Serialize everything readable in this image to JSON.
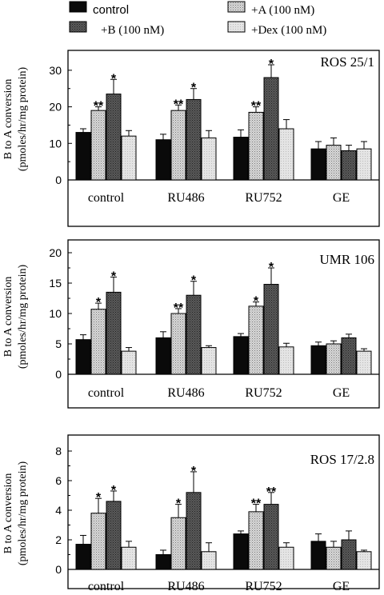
{
  "legend": {
    "items": [
      {
        "label": "control",
        "pattern": "black",
        "font": "sans"
      },
      {
        "label": "+A (100 nM)",
        "pattern": "lightHatch",
        "font": "serif"
      },
      {
        "label": "+B (100 nM)",
        "pattern": "darkHatch",
        "font": "serif"
      },
      {
        "label": "+Dex (100 nM)",
        "pattern": "lightGray",
        "font": "serif"
      }
    ]
  },
  "chart_data": [
    {
      "type": "bar",
      "title": "ROS 25/1",
      "ylabel_line1": "B to A conversion",
      "ylabel_line2": "(pmoles/hr/mg protein)",
      "categories": [
        "control",
        "RU486",
        "RU752",
        "GE"
      ],
      "ylim": [
        0,
        35
      ],
      "yticks": [
        "0",
        "10",
        "20",
        "30"
      ],
      "ytick_values": [
        0,
        10,
        20,
        30
      ],
      "series": [
        {
          "name": "control",
          "values": [
            13,
            11,
            11.7,
            8.5
          ],
          "errors": [
            1,
            1.5,
            2,
            2
          ]
        },
        {
          "name": "+A (100 nM)",
          "values": [
            19,
            19,
            18.5,
            9.5
          ],
          "errors": [
            1,
            1.5,
            1.5,
            2
          ]
        },
        {
          "name": "+B (100 nM)",
          "values": [
            23.5,
            22,
            28,
            8
          ],
          "errors": [
            4,
            3,
            3.5,
            1.5
          ]
        },
        {
          "name": "+Dex (100 nM)",
          "values": [
            12,
            11.5,
            14,
            8.5
          ],
          "errors": [
            1.5,
            2,
            2.5,
            2
          ]
        }
      ],
      "significance": [
        {
          "series": 1,
          "category": 0,
          "label": "**"
        },
        {
          "series": 2,
          "category": 0,
          "label": "*"
        },
        {
          "series": 1,
          "category": 1,
          "label": "**"
        },
        {
          "series": 2,
          "category": 1,
          "label": "*"
        },
        {
          "series": 1,
          "category": 2,
          "label": "**"
        },
        {
          "series": 2,
          "category": 2,
          "label": "*"
        }
      ]
    },
    {
      "type": "bar",
      "title": "UMR 106",
      "ylabel_line1": "B to A conversion",
      "ylabel_line2": "(pmoles/hr/mg protein)",
      "categories": [
        "control",
        "RU486",
        "RU752",
        "GE"
      ],
      "ylim": [
        0,
        20
      ],
      "yticks": [
        "0",
        "5",
        "10",
        "15",
        "20"
      ],
      "ytick_values": [
        0,
        5,
        10,
        15,
        20
      ],
      "series": [
        {
          "name": "control",
          "values": [
            5.7,
            6,
            6.2,
            4.7
          ],
          "errors": [
            0.8,
            1,
            0.5,
            0.6
          ]
        },
        {
          "name": "+A (100 nM)",
          "values": [
            10.7,
            10,
            11.2,
            5
          ],
          "errors": [
            1,
            0.8,
            0.7,
            0.5
          ]
        },
        {
          "name": "+B (100 nM)",
          "values": [
            13.5,
            13,
            14.8,
            6
          ],
          "errors": [
            2.5,
            2.3,
            2.7,
            0.6
          ]
        },
        {
          "name": "+Dex (100 nM)",
          "values": [
            3.8,
            4.4,
            4.5,
            3.8
          ],
          "errors": [
            0.6,
            0.3,
            0.6,
            0.4
          ]
        }
      ],
      "significance": [
        {
          "series": 1,
          "category": 0,
          "label": "*"
        },
        {
          "series": 2,
          "category": 0,
          "label": "*"
        },
        {
          "series": 1,
          "category": 1,
          "label": "**"
        },
        {
          "series": 2,
          "category": 1,
          "label": "*"
        },
        {
          "series": 1,
          "category": 2,
          "label": "*"
        },
        {
          "series": 2,
          "category": 2,
          "label": "*"
        }
      ]
    },
    {
      "type": "bar",
      "title": "ROS 17/2.8",
      "ylabel_line1": "B to A conversion",
      "ylabel_line2": "(pmoles/hr/mg protein)",
      "categories": [
        "control",
        "RU486",
        "RU752",
        "GE"
      ],
      "ylim": [
        0,
        8
      ],
      "yticks": [
        "0",
        "2",
        "4",
        "6",
        "8"
      ],
      "ytick_values": [
        0,
        2,
        4,
        6,
        8
      ],
      "series": [
        {
          "name": "control",
          "values": [
            1.7,
            1,
            2.4,
            1.9
          ],
          "errors": [
            0.6,
            0.3,
            0.2,
            0.5
          ]
        },
        {
          "name": "+A (100 nM)",
          "values": [
            3.8,
            3.5,
            3.9,
            1.5
          ],
          "errors": [
            1,
            0.9,
            0.5,
            0.4
          ]
        },
        {
          "name": "+B (100 nM)",
          "values": [
            4.6,
            5.2,
            4.4,
            2
          ],
          "errors": [
            0.7,
            1.4,
            0.8,
            0.6
          ]
        },
        {
          "name": "+Dex (100 nM)",
          "values": [
            1.5,
            1.2,
            1.5,
            1.2
          ],
          "errors": [
            0.4,
            0.6,
            0.3,
            0.1
          ]
        }
      ],
      "significance": [
        {
          "series": 1,
          "category": 0,
          "label": "*"
        },
        {
          "series": 2,
          "category": 0,
          "label": "*"
        },
        {
          "series": 1,
          "category": 1,
          "label": "*"
        },
        {
          "series": 2,
          "category": 1,
          "label": "*"
        },
        {
          "series": 1,
          "category": 2,
          "label": "**"
        },
        {
          "series": 2,
          "category": 2,
          "label": "**"
        }
      ]
    }
  ]
}
